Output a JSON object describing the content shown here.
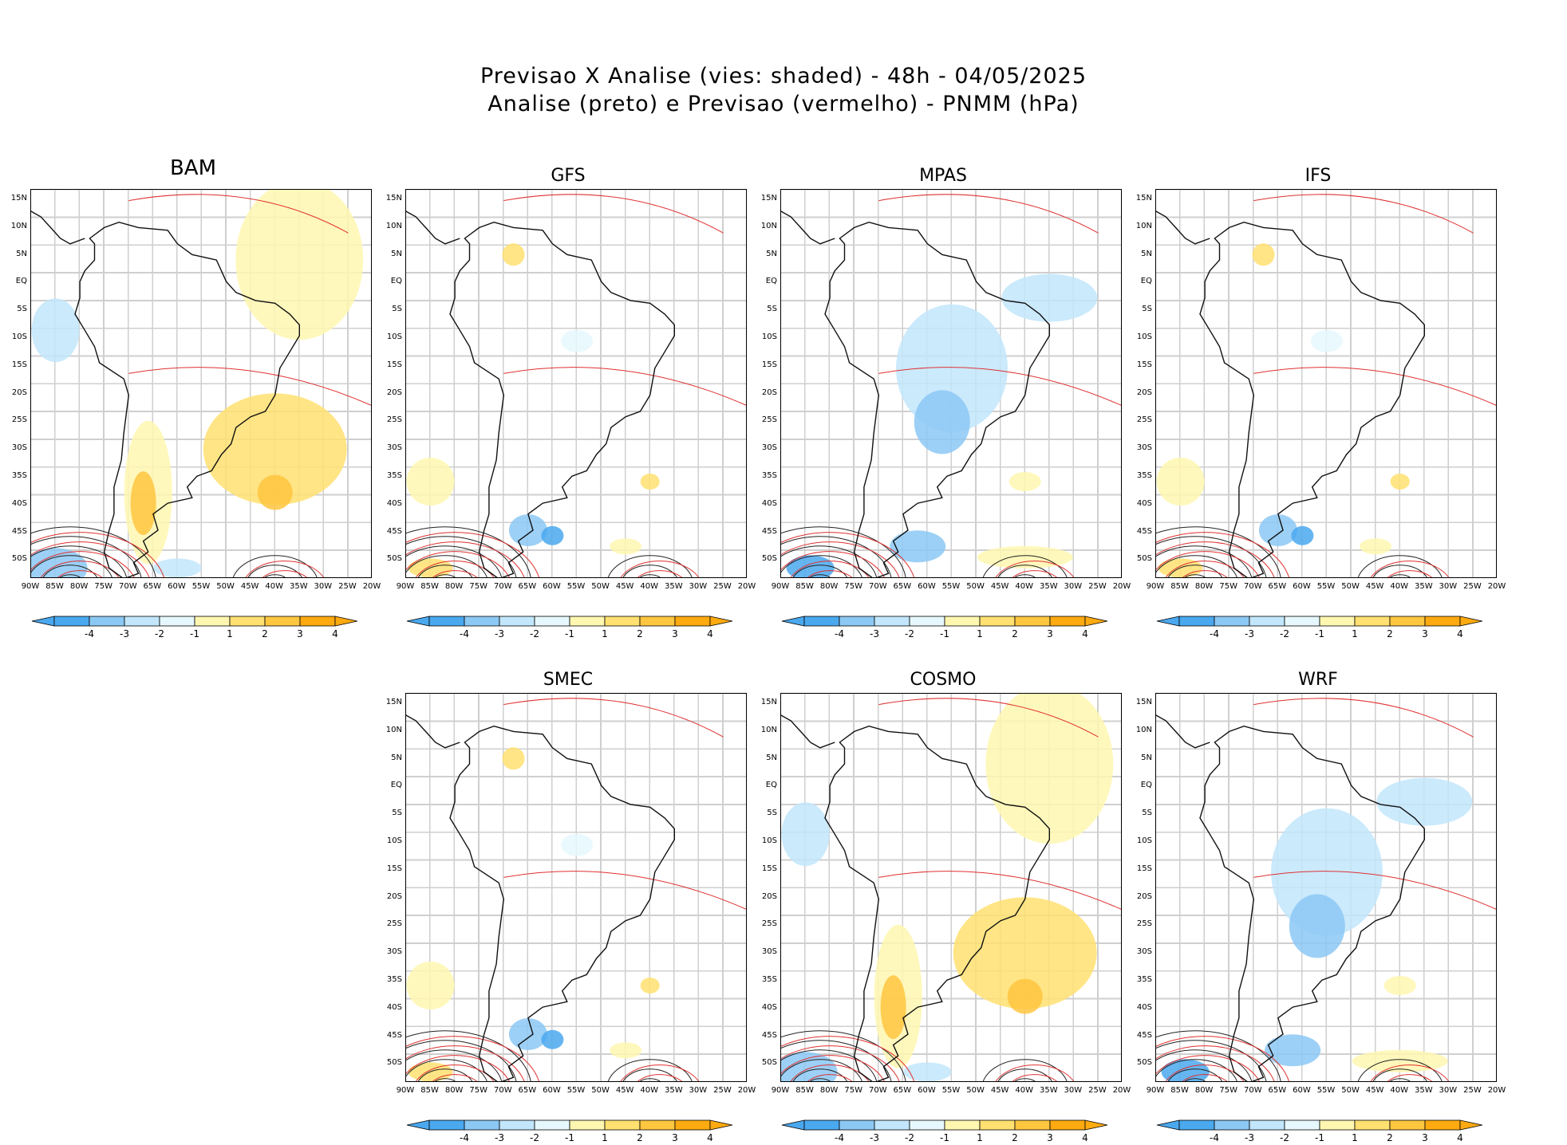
{
  "header": {
    "line1": "Previsao X Analise (vies: shaded) - 48h - 04/05/2025",
    "line2": "Analise (preto) e Previsao (vermelho) - PNMM (hPa)"
  },
  "axes": {
    "lat_labels": [
      "15N",
      "10N",
      "5N",
      "EQ",
      "5S",
      "10S",
      "15S",
      "20S",
      "25S",
      "30S",
      "35S",
      "40S",
      "45S",
      "50S"
    ],
    "lon_labels": [
      "90W",
      "85W",
      "80W",
      "75W",
      "70W",
      "65W",
      "60W",
      "55W",
      "50W",
      "45W",
      "40W",
      "35W",
      "30W",
      "25W",
      "20W"
    ]
  },
  "colorbar": {
    "labels": [
      "-4",
      "-3",
      "-2",
      "-1",
      "1",
      "2",
      "3",
      "4"
    ],
    "colors": [
      "#4aa8ee",
      "#8cc8f4",
      "#c2e6fb",
      "#e6f8fd",
      "#ffffff",
      "#fff7b0",
      "#ffe070",
      "#ffc640",
      "#ffaa10"
    ]
  },
  "panels": [
    {
      "id": "bam",
      "title": "BAM",
      "bias": "warm"
    },
    {
      "id": "gfs",
      "title": "GFS",
      "bias": "mixed"
    },
    {
      "id": "mpas",
      "title": "MPAS",
      "bias": "cold"
    },
    {
      "id": "ifs",
      "title": "IFS",
      "bias": "mixed"
    },
    {
      "id": "smec",
      "title": "SMEC",
      "bias": "mixed"
    },
    {
      "id": "cosmo",
      "title": "COSMO",
      "bias": "warm"
    },
    {
      "id": "wrf",
      "title": "WRF",
      "bias": "cold"
    }
  ]
}
